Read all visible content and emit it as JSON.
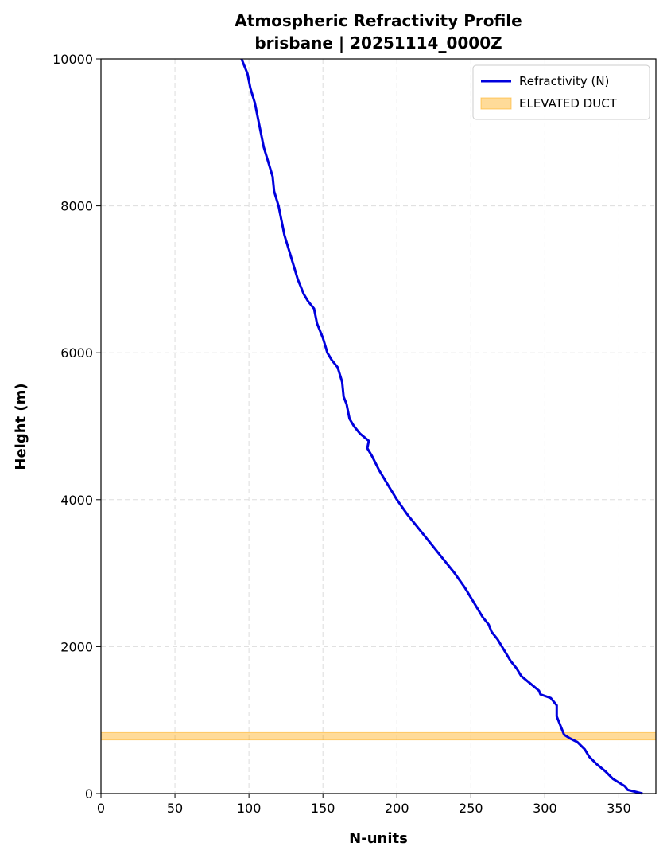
{
  "chart_data": {
    "type": "line",
    "title": "Atmospheric Refractivity Profile",
    "subtitle": "brisbane | 20251114_0000Z",
    "xlabel": "N-units",
    "ylabel": "Height (m)",
    "xlim": [
      0,
      375
    ],
    "xticks": [
      0,
      50,
      100,
      150,
      200,
      250,
      300,
      350
    ],
    "ylim": [
      0,
      10000
    ],
    "yticks": [
      0,
      2000,
      4000,
      6000,
      8000,
      10000
    ],
    "grid": true,
    "legend": "upper right",
    "series": [
      {
        "name": "Refractivity (N)",
        "color": "#0000dd",
        "x": [
          366,
          356,
          354,
          346,
          341,
          335,
          330,
          327,
          322,
          317,
          313,
          311,
          309,
          308,
          308,
          308,
          304,
          297,
          296,
          290,
          284,
          281,
          277,
          274,
          271,
          268,
          264,
          262,
          258,
          255,
          252,
          246,
          239,
          231,
          223,
          215,
          207,
          200,
          194,
          188,
          183,
          180,
          181,
          175,
          171,
          168,
          166,
          164,
          163,
          160,
          156,
          153,
          150,
          146,
          144,
          140,
          137,
          133,
          130,
          127,
          124,
          122,
          120,
          117,
          116,
          113,
          110,
          108,
          106,
          104,
          101,
          99,
          95
        ],
        "values": [
          0,
          50,
          100,
          200,
          300,
          400,
          500,
          600,
          700,
          750,
          800,
          900,
          1000,
          1050,
          1100,
          1200,
          1300,
          1350,
          1400,
          1500,
          1600,
          1700,
          1800,
          1900,
          2000,
          2100,
          2200,
          2300,
          2400,
          2500,
          2600,
          2800,
          3000,
          3200,
          3400,
          3600,
          3800,
          4000,
          4200,
          4400,
          4600,
          4700,
          4800,
          4900,
          5000,
          5100,
          5300,
          5400,
          5600,
          5800,
          5900,
          6000,
          6200,
          6400,
          6600,
          6700,
          6800,
          7000,
          7200,
          7400,
          7600,
          7800,
          8000,
          8200,
          8400,
          8600,
          8800,
          9000,
          9200,
          9400,
          9600,
          9800,
          10000
        ]
      }
    ],
    "bands": [
      {
        "name": "ELEVATED DUCT",
        "color": "#ffa500",
        "range": [
          730,
          830
        ]
      }
    ]
  }
}
